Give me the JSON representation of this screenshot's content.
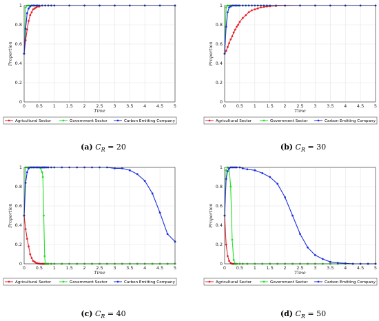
{
  "colors": {
    "agricultural": "#e8202a",
    "government": "#22e022",
    "carbon": "#1a2ee0"
  },
  "chart_data": [
    {
      "id": "a",
      "type": "line",
      "caption": {
        "label": "(a)",
        "var": "C",
        "sub": "R",
        "rest": " = 20"
      },
      "xlabel": "Time",
      "ylabel": "Proportion",
      "xlim": [
        0,
        5
      ],
      "ylim": [
        0,
        1
      ],
      "grid": true,
      "legend_placement": "bottom",
      "xticks": [
        "0",
        "0.5",
        "1",
        "1.5",
        "2",
        "2.5",
        "3",
        "3.5",
        "4",
        "4.5",
        "5"
      ],
      "yticks": [
        "0",
        "0.2",
        "0.4",
        "0.6",
        "0.8",
        "1"
      ],
      "x": [
        0,
        0.05,
        0.1,
        0.15,
        0.2,
        0.25,
        0.3,
        0.35,
        0.4,
        0.45,
        0.5,
        0.6,
        0.7,
        0.8,
        0.9,
        1,
        1.5,
        2,
        2.5,
        3,
        3.5,
        4,
        4.5,
        5
      ],
      "series": [
        {
          "name": "Agricultural Sector",
          "color_key": "agricultural",
          "values": [
            0.5,
            0.64,
            0.75,
            0.84,
            0.9,
            0.93,
            0.96,
            0.97,
            0.98,
            0.99,
            0.99,
            1,
            1,
            1,
            1,
            1,
            1,
            1,
            1,
            1,
            1,
            1,
            1,
            1
          ]
        },
        {
          "name": "Government Sector",
          "color_key": "government",
          "values": [
            0.5,
            0.98,
            1,
            1,
            1,
            1,
            1,
            1,
            1,
            1,
            1,
            1,
            1,
            1,
            1,
            1,
            1,
            1,
            1,
            1,
            1,
            1,
            1,
            1
          ]
        },
        {
          "name": "Carbon Emitting Company",
          "color_key": "carbon",
          "values": [
            0.5,
            0.76,
            0.92,
            0.97,
            0.99,
            1,
            1,
            1,
            1,
            1,
            1,
            1,
            1,
            1,
            1,
            1,
            1,
            1,
            1,
            1,
            1,
            1,
            1,
            1
          ]
        }
      ]
    },
    {
      "id": "b",
      "type": "line",
      "caption": {
        "label": "(b)",
        "var": "C",
        "sub": "R",
        "rest": " = 30"
      },
      "xlabel": "Time",
      "ylabel": "Proportion",
      "xlim": [
        0,
        5
      ],
      "ylim": [
        0,
        1
      ],
      "grid": true,
      "legend_placement": "bottom",
      "xticks": [
        "0",
        "0.5",
        "1",
        "1.5",
        "2",
        "2.5",
        "3",
        "3.5",
        "4",
        "4.5",
        "5"
      ],
      "yticks": [
        "0",
        "0.2",
        "0.4",
        "0.6",
        "0.8",
        "1"
      ],
      "x": [
        0,
        0.05,
        0.1,
        0.15,
        0.2,
        0.25,
        0.3,
        0.35,
        0.4,
        0.45,
        0.5,
        0.6,
        0.7,
        0.8,
        0.9,
        1,
        1.1,
        1.2,
        1.3,
        1.4,
        1.5,
        1.7,
        2,
        2.5,
        3,
        3.5,
        4,
        4.5,
        5
      ],
      "series": [
        {
          "name": "Agricultural Sector",
          "color_key": "agricultural",
          "values": [
            0.5,
            0.53,
            0.57,
            0.61,
            0.65,
            0.68,
            0.72,
            0.75,
            0.78,
            0.8,
            0.83,
            0.87,
            0.9,
            0.93,
            0.95,
            0.96,
            0.97,
            0.98,
            0.985,
            0.99,
            0.993,
            0.996,
            0.998,
            1,
            1,
            1,
            1,
            1,
            1
          ]
        },
        {
          "name": "Government Sector",
          "color_key": "government",
          "values": [
            0.5,
            0.98,
            1,
            1,
            1,
            1,
            1,
            1,
            1,
            1,
            1,
            1,
            1,
            1,
            1,
            1,
            1,
            1,
            1,
            1,
            1,
            1,
            1,
            1,
            1,
            1,
            1,
            1,
            1
          ]
        },
        {
          "name": "Carbon Emitting Company",
          "color_key": "carbon",
          "values": [
            0.5,
            0.78,
            0.93,
            0.98,
            0.99,
            1,
            1,
            1,
            1,
            1,
            1,
            1,
            1,
            1,
            1,
            1,
            1,
            1,
            1,
            1,
            1,
            1,
            1,
            1,
            1,
            1,
            1,
            1,
            1
          ]
        }
      ]
    },
    {
      "id": "c",
      "type": "line",
      "caption": {
        "label": "(c)",
        "var": "C",
        "sub": "R",
        "rest": " = 40"
      },
      "xlabel": "Time",
      "ylabel": "Proportion",
      "xlim": [
        0,
        5
      ],
      "ylim": [
        0,
        1
      ],
      "grid": true,
      "legend_placement": "bottom",
      "xticks": [
        "0",
        "0.5",
        "1",
        "1.5",
        "2",
        "2.5",
        "3",
        "3.5",
        "4",
        "4.5",
        "5"
      ],
      "yticks": [
        "0",
        "0.2",
        "0.4",
        "0.6",
        "0.8",
        "1"
      ],
      "x": [
        0,
        0.05,
        0.1,
        0.15,
        0.2,
        0.25,
        0.3,
        0.35,
        0.4,
        0.45,
        0.5,
        0.55,
        0.6,
        0.62,
        0.65,
        0.68,
        0.7,
        0.75,
        0.8,
        0.9,
        1,
        1.25,
        1.5,
        1.75,
        2,
        2.25,
        2.5,
        2.75,
        3,
        3.25,
        3.5,
        3.75,
        4,
        4.25,
        4.5,
        4.75,
        5
      ],
      "series": [
        {
          "name": "Agricultural Sector",
          "color_key": "agricultural",
          "values": [
            0.5,
            0.36,
            0.26,
            0.18,
            0.1,
            0.06,
            0.03,
            0.02,
            0.01,
            0.005,
            0.002,
            0,
            0,
            0,
            0,
            0,
            0,
            0,
            0,
            0,
            0,
            0,
            0,
            0,
            0,
            0,
            0,
            0,
            0,
            0,
            0,
            0,
            0,
            0,
            0,
            0,
            0
          ]
        },
        {
          "name": "Government Sector",
          "color_key": "government",
          "values": [
            0.5,
            1,
            1,
            1,
            1,
            1,
            1,
            1,
            1,
            1,
            1,
            0.99,
            0.95,
            0.9,
            0.5,
            0.08,
            0,
            0,
            0,
            0,
            0,
            0,
            0,
            0,
            0,
            0,
            0,
            0,
            0,
            0,
            0,
            0,
            0,
            0,
            0,
            0,
            0
          ]
        },
        {
          "name": "Carbon Emitting Company",
          "color_key": "carbon",
          "values": [
            0.5,
            0.84,
            0.95,
            0.99,
            1,
            1,
            1,
            1,
            1,
            1,
            1,
            1,
            1,
            1,
            1,
            1,
            1,
            1,
            1,
            1,
            1,
            1,
            1,
            1,
            1,
            1,
            1,
            1,
            0.99,
            0.99,
            0.97,
            0.93,
            0.86,
            0.73,
            0.53,
            0.31,
            0.23
          ]
        }
      ]
    },
    {
      "id": "d",
      "type": "line",
      "caption": {
        "label": "(d)",
        "var": "C",
        "sub": "R",
        "rest": " = 50"
      },
      "xlabel": "Time",
      "ylabel": "Proportion",
      "xlim": [
        0,
        5
      ],
      "ylim": [
        0,
        1
      ],
      "grid": true,
      "legend_placement": "bottom",
      "xticks": [
        "0",
        "0.5",
        "1",
        "1.5",
        "2",
        "2.5",
        "3",
        "3.5",
        "4",
        "4.5",
        "5"
      ],
      "yticks": [
        "0",
        "0.2",
        "0.4",
        "0.6",
        "0.8",
        "1"
      ],
      "x": [
        0,
        0.05,
        0.1,
        0.15,
        0.2,
        0.25,
        0.3,
        0.35,
        0.4,
        0.5,
        0.6,
        0.75,
        1,
        1.25,
        1.5,
        1.75,
        2,
        2.25,
        2.5,
        2.75,
        3,
        3.25,
        3.5,
        3.75,
        4,
        4.25,
        4.5,
        4.75,
        5
      ],
      "series": [
        {
          "name": "Agricultural Sector",
          "color_key": "agricultural",
          "values": [
            0.5,
            0.2,
            0.08,
            0.03,
            0.01,
            0,
            0,
            0,
            0,
            0,
            0,
            0,
            0,
            0,
            0,
            0,
            0,
            0,
            0,
            0,
            0,
            0,
            0,
            0,
            0,
            0,
            0,
            0,
            0
          ]
        },
        {
          "name": "Government Sector",
          "color_key": "government",
          "values": [
            0.5,
            0.97,
            1,
            0.99,
            0.8,
            0.25,
            0.04,
            0,
            0,
            0,
            0,
            0,
            0,
            0,
            0,
            0,
            0,
            0,
            0,
            0,
            0,
            0,
            0,
            0,
            0,
            0,
            0,
            0,
            0
          ]
        },
        {
          "name": "Carbon Emitting Company",
          "color_key": "carbon",
          "values": [
            0.5,
            0.88,
            0.96,
            0.99,
            1,
            1,
            1,
            1,
            1,
            1,
            0.99,
            0.98,
            0.97,
            0.94,
            0.9,
            0.83,
            0.69,
            0.5,
            0.31,
            0.17,
            0.09,
            0.05,
            0.02,
            0.01,
            0.005,
            0,
            0,
            0,
            0
          ]
        }
      ]
    }
  ]
}
